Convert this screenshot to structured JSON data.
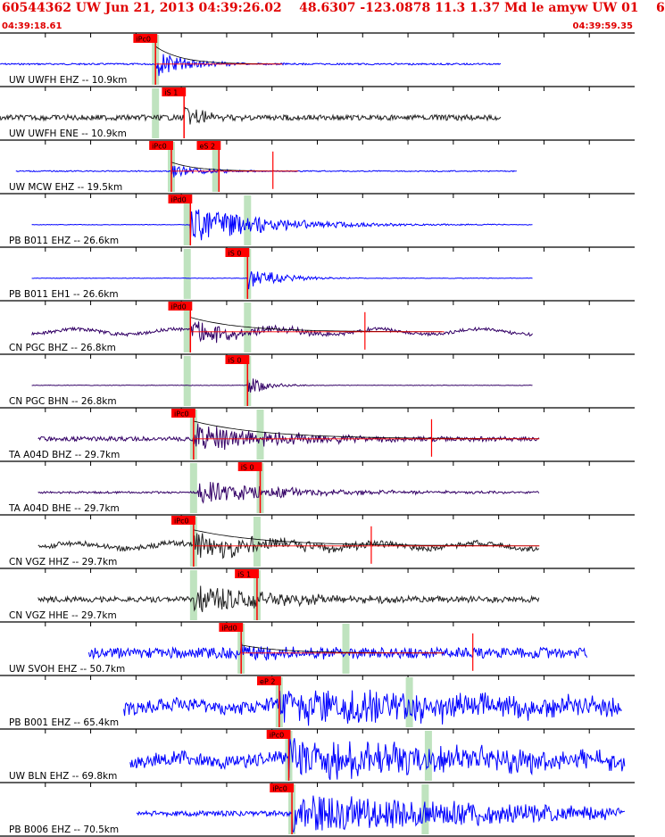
{
  "header": {
    "title": "60544362 UW Jun 21, 2013 04:39:26.02    48.6307 -123.0878 11.3 1.37 Md le amyw UW 01    6",
    "time_start": "04:39:18.61",
    "time_end": "04:39:59.35"
  },
  "colors": {
    "axis": "#000000",
    "blue": "#0000ff",
    "dark": "#222222",
    "purple": "#330066",
    "red": "#ff0000",
    "window": "#bfe3bf"
  },
  "chart_data": {
    "type": "line",
    "title": "",
    "time_range": [
      "04:39:18.61",
      "04:39:59.35"
    ],
    "traces": [
      {
        "label": "UW UWFH EHZ -- 10.9km",
        "color": "blue",
        "start": 0.0,
        "end": 0.79,
        "pick": "iPc0",
        "pick_time": 0.245,
        "amp": 0.55,
        "noise": 0.03,
        "onset": 0.245,
        "decay": 0.05,
        "window": 0.245,
        "coda": true
      },
      {
        "label": "UW UWFH ENE -- 10.9km",
        "color": "dark",
        "start": 0.0,
        "end": 0.79,
        "pick": "iS 1",
        "pick_time": 0.29,
        "amp": 0.5,
        "noise": 0.1,
        "onset": 0.29,
        "decay": 0.03,
        "window": 0.245
      },
      {
        "label": "UW MCW EHZ -- 19.5km",
        "color": "blue",
        "start": 0.025,
        "end": 0.815,
        "pick": "iPc0",
        "pick_time": 0.27,
        "pick2": "eS 2",
        "pick2_time": 0.345,
        "amp": 0.28,
        "noise": 0.02,
        "onset": 0.27,
        "decay": 0.05,
        "window": 0.27,
        "window2": 0.34,
        "spike": 0.43,
        "coda": true
      },
      {
        "label": "PB B011 EHZ -- 26.6km",
        "color": "blue",
        "start": 0.05,
        "end": 0.84,
        "pick": "iPd0",
        "pick_time": 0.3,
        "amp": 0.7,
        "noise": 0.0,
        "onset": 0.3,
        "decay": 0.12,
        "window": 0.295,
        "window2": 0.39
      },
      {
        "label": "PB B011 EH1 -- 26.6km",
        "color": "blue",
        "start": 0.05,
        "end": 0.84,
        "pick": "iS 0",
        "pick_time": 0.39,
        "amp": 0.45,
        "noise": 0.0,
        "onset": 0.39,
        "decay": 0.05,
        "window": 0.295,
        "window2": 0.39
      },
      {
        "label": "CN PGC BHZ -- 26.8km",
        "color": "purple",
        "start": 0.05,
        "end": 0.84,
        "pick": "iPd0",
        "pick_time": 0.3,
        "amp": 0.45,
        "noise": 0.06,
        "onset": 0.3,
        "decay": 0.1,
        "window": 0.295,
        "window2": 0.39,
        "spike": 0.575,
        "coda": true,
        "wave": true
      },
      {
        "label": "CN PGC BHN -- 26.8km",
        "color": "purple",
        "start": 0.05,
        "end": 0.84,
        "pick": "iS 0",
        "pick_time": 0.39,
        "amp": 0.4,
        "noise": 0.01,
        "onset": 0.39,
        "decay": 0.03,
        "window": 0.295,
        "window2": 0.39
      },
      {
        "label": "TA A04D BHZ -- 29.7km",
        "color": "purple",
        "start": 0.06,
        "end": 0.85,
        "pick": "iPc0",
        "pick_time": 0.305,
        "amp": 0.55,
        "noise": 0.08,
        "onset": 0.305,
        "decay": 0.14,
        "window": 0.305,
        "window2": 0.41,
        "spike": 0.68,
        "coda": true
      },
      {
        "label": "TA A04D BHE -- 29.7km",
        "color": "purple",
        "start": 0.06,
        "end": 0.85,
        "pick": "iS 0",
        "pick_time": 0.41,
        "amp": 0.45,
        "noise": 0.04,
        "onset": 0.31,
        "decay": 0.14,
        "window": 0.305,
        "window2": 0.41
      },
      {
        "label": "CN VGZ HHZ -- 29.7km",
        "color": "dark",
        "start": 0.06,
        "end": 0.85,
        "pick": "iPc0",
        "pick_time": 0.305,
        "amp": 0.5,
        "noise": 0.1,
        "onset": 0.305,
        "decay": 0.14,
        "window": 0.305,
        "window2": 0.405,
        "spike": 0.585,
        "coda": true,
        "wave": true
      },
      {
        "label": "CN VGZ HHE -- 29.7km",
        "color": "dark",
        "start": 0.06,
        "end": 0.85,
        "pick": "iS 1",
        "pick_time": 0.405,
        "amp": 0.5,
        "noise": 0.1,
        "onset": 0.305,
        "decay": 0.15,
        "window": 0.305,
        "window2": 0.405
      },
      {
        "label": "UW SVOH EHZ -- 50.7km",
        "color": "blue",
        "start": 0.14,
        "end": 0.925,
        "pick": "iPd0",
        "pick_time": 0.38,
        "amp": 0.25,
        "noise": 0.2,
        "onset": 0.38,
        "decay": 0.08,
        "window": 0.38,
        "window2": 0.545,
        "spike": 0.745,
        "coda": true
      },
      {
        "label": "PB B001 EHZ -- 65.4km",
        "color": "blue",
        "start": 0.195,
        "end": 0.98,
        "pick": "eP 2",
        "pick_time": 0.44,
        "amp": 0.7,
        "noise": 0.25,
        "onset": 0.44,
        "decay": 0.4,
        "window": 0.44,
        "window2": 0.645,
        "wave": true
      },
      {
        "label": "UW BLN EHZ -- 69.8km",
        "color": "blue",
        "start": 0.205,
        "end": 0.985,
        "pick": "iPc0",
        "pick_time": 0.455,
        "amp": 0.7,
        "noise": 0.25,
        "onset": 0.455,
        "decay": 0.4,
        "window": 0.455,
        "window2": 0.675,
        "wave": true
      },
      {
        "label": "PB B006 EHZ -- 70.5km",
        "color": "blue",
        "start": 0.215,
        "end": 0.985,
        "pick": "iPc0",
        "pick_time": 0.46,
        "amp": 0.75,
        "noise": 0.1,
        "onset": 0.46,
        "decay": 0.4,
        "window": 0.46,
        "window2": 0.67
      }
    ]
  }
}
